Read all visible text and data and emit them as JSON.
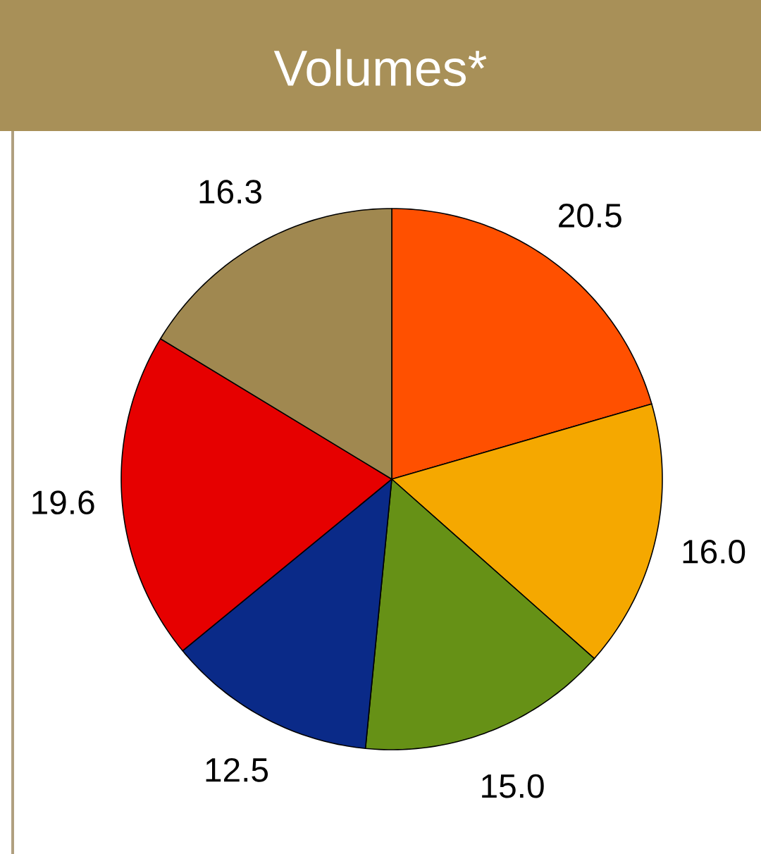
{
  "chart_data": {
    "type": "pie",
    "title": "Volumes*",
    "categories": [
      null,
      null,
      null,
      null,
      null,
      null
    ],
    "values": [
      20.5,
      16.0,
      15.0,
      12.5,
      19.6,
      16.3
    ],
    "colors": [
      "#ff5000",
      "#f5a800",
      "#669116",
      "#0a2a88",
      "#e60000",
      "#a08850"
    ],
    "value_labels": [
      "20.5",
      "16.0",
      "15.0",
      "12.5",
      "19.6",
      "16.3"
    ]
  }
}
